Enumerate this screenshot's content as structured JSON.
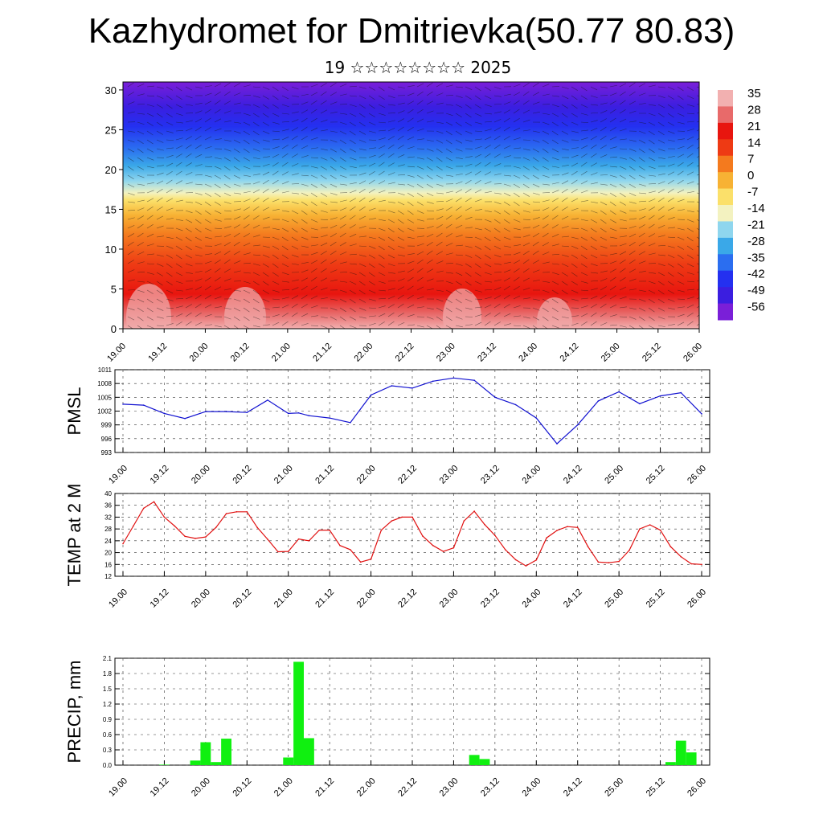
{
  "title": "Kazhydromet for Dmitrievka(50.77 80.83)",
  "subtitle": "19 ☆☆☆☆☆☆☆☆ 2025",
  "time_ticks": [
    "19.00",
    "19.12",
    "20.00",
    "20.12",
    "21.00",
    "21.12",
    "22.00",
    "22.12",
    "23.00",
    "23.12",
    "24.00",
    "24.12",
    "25.00",
    "25.12",
    "26.00"
  ],
  "cross_section": {
    "y_ticks": [
      0,
      5,
      10,
      15,
      20,
      25,
      30
    ],
    "ylim": [
      0,
      31
    ],
    "colorbar_labels": [
      "35",
      "28",
      "21",
      "14",
      "7",
      "0",
      "-7",
      "-14",
      "-21",
      "-28",
      "-35",
      "-42",
      "-49",
      "-56"
    ],
    "color_scale": [
      "#7a1fd8",
      "#3b1ee0",
      "#2430f0",
      "#2b6ef0",
      "#3aa8e8",
      "#8fd6ee",
      "#f3f2c0",
      "#fbe06a",
      "#f7b234",
      "#f47a1e",
      "#ee3a14",
      "#e8150f",
      "#e86a6a",
      "#f2b0b0"
    ]
  },
  "chart_data": [
    {
      "type": "line",
      "ylabel": "PMSL",
      "ylim": [
        993,
        1011
      ],
      "y_ticks": [
        993,
        996,
        999,
        1002,
        1005,
        1008,
        1011
      ],
      "color": "#1010d0",
      "x_hours": [
        0,
        6,
        12,
        18,
        24,
        30,
        36,
        42,
        48,
        51,
        54,
        60,
        66,
        72,
        78,
        84,
        90,
        96,
        102,
        108,
        114,
        120,
        126,
        132,
        138,
        144,
        150,
        156,
        162,
        168
      ],
      "values": [
        1003.5,
        1003.3,
        1001.5,
        1000.4,
        1001.9,
        1001.9,
        1001.7,
        1004.4,
        1001.5,
        1001.6,
        1001.0,
        1000.5,
        999.5,
        1005.5,
        1007.5,
        1007.0,
        1008.5,
        1009.2,
        1008.7,
        1005.0,
        1003.4,
        1000.5,
        994.9,
        999.0,
        1004.2,
        1006.2,
        1003.6,
        1005.3,
        1006.0,
        1001.4
      ]
    },
    {
      "type": "line",
      "ylabel": "TEMP at 2 M",
      "ylim": [
        12,
        40
      ],
      "y_ticks": [
        12,
        16,
        20,
        24,
        28,
        32,
        36,
        40
      ],
      "color": "#e01010",
      "x_hours": [
        0,
        3,
        6,
        9,
        12,
        15,
        18,
        21,
        24,
        27,
        30,
        33,
        36,
        39,
        42,
        45,
        48,
        51,
        54,
        57,
        60,
        63,
        66,
        69,
        72,
        75,
        78,
        81,
        84,
        87,
        90,
        93,
        96,
        99,
        102,
        105,
        108,
        111,
        114,
        117,
        120,
        123,
        126,
        129,
        132,
        135,
        138,
        141,
        144,
        147,
        150,
        153,
        156,
        159,
        162,
        165,
        168
      ],
      "values": [
        23,
        29,
        35,
        37.2,
        32,
        29,
        25.5,
        24.8,
        25.3,
        28.5,
        33.2,
        33.8,
        33.8,
        28.5,
        24.5,
        20.3,
        20.4,
        24.6,
        24,
        27.6,
        27.6,
        22.4,
        21,
        16.8,
        17.8,
        27.6,
        30.7,
        32,
        32,
        25.6,
        22.4,
        20.4,
        21.6,
        30.7,
        34,
        29.5,
        25.8,
        21,
        17.6,
        15.5,
        17.5,
        25,
        27.5,
        28.8,
        28.5,
        22,
        16.8,
        16.6,
        17,
        20.8,
        28,
        29.4,
        27.6,
        22,
        18.6,
        16.2,
        16
      ]
    },
    {
      "type": "bar",
      "ylabel": "PRECIP, mm",
      "ylim": [
        0,
        2.1
      ],
      "y_ticks": [
        "0.0",
        "0.3",
        "0.6",
        "0.9",
        "1.2",
        "1.5",
        "1.8",
        "2.1"
      ],
      "color": "#10f010",
      "x_hours": [
        12,
        21,
        24,
        27,
        30,
        48,
        51,
        54,
        102,
        105,
        159,
        162,
        165
      ],
      "values": [
        0.01,
        0.09,
        0.45,
        0.06,
        0.52,
        0.15,
        2.03,
        0.53,
        0.2,
        0.12,
        0.06,
        0.48,
        0.25
      ]
    }
  ]
}
